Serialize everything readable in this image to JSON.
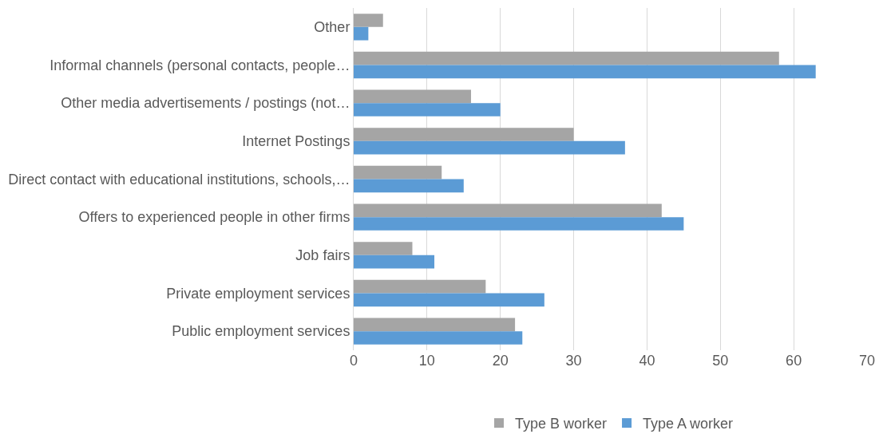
{
  "chart_data": {
    "type": "bar",
    "orientation": "horizontal",
    "categories": [
      "Other",
      "Informal channels (personal contacts, people…",
      "Other media advertisements / postings (not…",
      "Internet Postings",
      "Direct contact with educational institutions, schools,…",
      "Offers to experienced people in other firms",
      "Job fairs",
      "Private employment services",
      "Public employment services"
    ],
    "series": [
      {
        "name": "Type B worker",
        "color": "#a5a5a5",
        "values": [
          4,
          58,
          16,
          30,
          12,
          42,
          8,
          18,
          22
        ]
      },
      {
        "name": "Type A worker",
        "color": "#5b9bd5",
        "values": [
          2,
          63,
          20,
          37,
          15,
          45,
          11,
          26,
          23
        ]
      }
    ],
    "xlim": [
      0,
      70
    ],
    "xticks": [
      0,
      10,
      20,
      30,
      40,
      50,
      60,
      70
    ],
    "grid": "x",
    "legend": "bottom"
  }
}
